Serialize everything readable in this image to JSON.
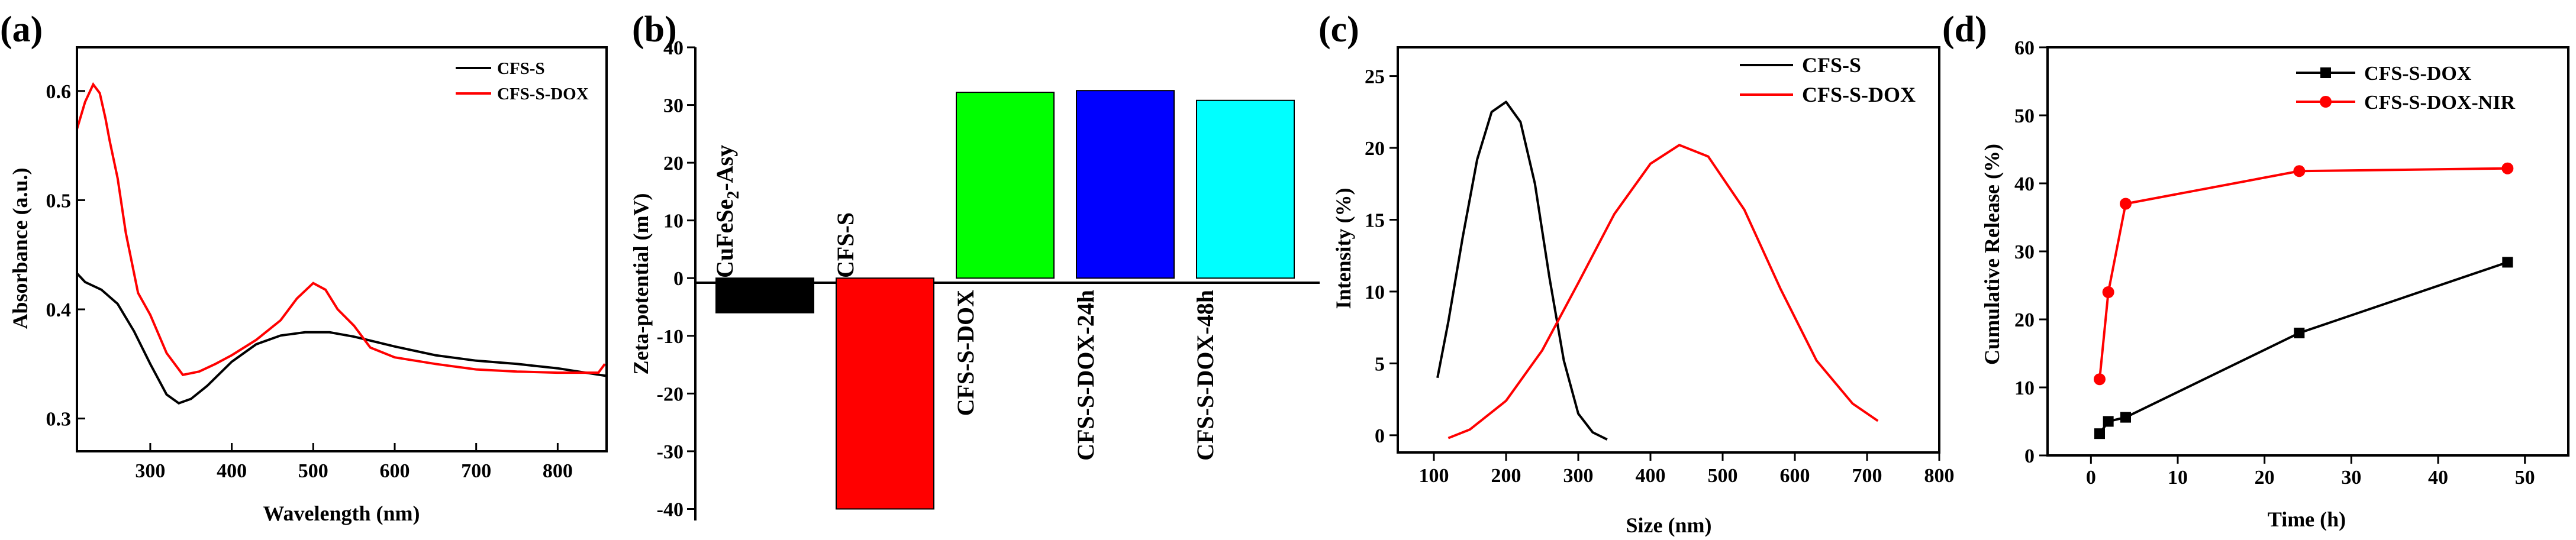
{
  "colors": {
    "black": "#000000",
    "red": "#ff0000",
    "green": "#00ff00",
    "blue": "#0000ff",
    "cyan": "#00ffff"
  },
  "chart_data": [
    {
      "type": "line",
      "panel_label": "(a)",
      "xlabel": "Wavelength (nm)",
      "ylabel": "Absorbance (a.u.)",
      "xlim": [
        210,
        860
      ],
      "ylim": [
        0.27,
        0.64
      ],
      "xticks": [
        "300",
        "400",
        "500",
        "600",
        "700",
        "800"
      ],
      "yticks": [
        "0.3",
        "0.4",
        "0.5",
        "0.6"
      ],
      "legend_position": "top-right",
      "series": [
        {
          "name": "CFS-S",
          "color": "#000000",
          "x": [
            210,
            220,
            240,
            260,
            280,
            300,
            320,
            335,
            350,
            370,
            400,
            430,
            460,
            490,
            520,
            550,
            600,
            650,
            700,
            750,
            800,
            860
          ],
          "y": [
            0.433,
            0.425,
            0.418,
            0.405,
            0.38,
            0.35,
            0.322,
            0.314,
            0.318,
            0.33,
            0.352,
            0.368,
            0.376,
            0.379,
            0.379,
            0.375,
            0.366,
            0.358,
            0.353,
            0.35,
            0.346,
            0.339
          ]
        },
        {
          "name": "CFS-S-DOX",
          "color": "#ff0000",
          "x": [
            210,
            220,
            230,
            238,
            245,
            250,
            260,
            270,
            285,
            300,
            320,
            340,
            360,
            380,
            400,
            430,
            460,
            480,
            500,
            515,
            530,
            550,
            570,
            600,
            650,
            700,
            750,
            800,
            850,
            858
          ],
          "y": [
            0.565,
            0.59,
            0.606,
            0.598,
            0.575,
            0.555,
            0.52,
            0.47,
            0.415,
            0.395,
            0.36,
            0.34,
            0.343,
            0.35,
            0.358,
            0.372,
            0.39,
            0.41,
            0.424,
            0.418,
            0.4,
            0.385,
            0.365,
            0.356,
            0.35,
            0.345,
            0.343,
            0.342,
            0.342,
            0.35
          ]
        }
      ]
    },
    {
      "type": "bar",
      "panel_label": "(b)",
      "xlabel": "",
      "ylabel": "Zeta-potential (mV)",
      "ylim": [
        -42,
        40
      ],
      "yticks": [
        "-40",
        "-30",
        "-20",
        "-10",
        "0",
        "10",
        "20",
        "30",
        "40"
      ],
      "categories": [
        "CuFeSe2-Asy",
        "CFS-S",
        "CFS-S-DOX",
        "CFS-S-DOX-24h",
        "CFS-S-DOX-48h"
      ],
      "category_label_main": "CuFeSe",
      "category_label_sub": "2",
      "category_label_rest": "-Asy",
      "values": [
        -6,
        -40,
        32.2,
        32.5,
        30.8
      ],
      "bar_colors": [
        "#000000",
        "#ff0000",
        "#00ff00",
        "#0000ff",
        "#00ffff"
      ]
    },
    {
      "type": "line",
      "panel_label": "(c)",
      "xlabel": "Size (nm)",
      "ylabel": "Intensity (%)",
      "xlim": [
        50,
        800
      ],
      "ylim": [
        -1.2,
        27
      ],
      "xticks": [
        "100",
        "200",
        "300",
        "400",
        "500",
        "600",
        "700",
        "800"
      ],
      "yticks": [
        "0",
        "5",
        "10",
        "15",
        "20",
        "25"
      ],
      "legend_position": "top-right",
      "series": [
        {
          "name": "CFS-S",
          "color": "#000000",
          "x": [
            105,
            120,
            140,
            160,
            180,
            200,
            220,
            240,
            260,
            280,
            300,
            320,
            340
          ],
          "y": [
            4.0,
            7.9,
            13.8,
            19.2,
            22.5,
            23.2,
            21.8,
            17.5,
            11.0,
            5.2,
            1.5,
            0.2,
            -0.3
          ]
        },
        {
          "name": "CFS-S-DOX",
          "color": "#ff0000",
          "x": [
            120,
            150,
            200,
            250,
            300,
            350,
            400,
            440,
            480,
            530,
            580,
            630,
            680,
            715
          ],
          "y": [
            -0.2,
            0.4,
            2.4,
            5.9,
            10.6,
            15.4,
            18.9,
            20.2,
            19.4,
            15.7,
            10.2,
            5.2,
            2.2,
            1.0
          ]
        }
      ]
    },
    {
      "type": "line",
      "panel_label": "(d)",
      "xlabel": "Time (h)",
      "ylabel": "Cumulative Release (%)",
      "xlim": [
        -5,
        55
      ],
      "ylim": [
        0,
        60
      ],
      "xticks": [
        "0",
        "10",
        "20",
        "30",
        "40",
        "50"
      ],
      "yticks": [
        "0",
        "10",
        "20",
        "30",
        "40",
        "50",
        "60"
      ],
      "legend_position": "top-left",
      "series": [
        {
          "name": "CFS-S-DOX",
          "color": "#000000",
          "marker": "square",
          "x": [
            1,
            2,
            4,
            24,
            48
          ],
          "y": [
            3.2,
            5.0,
            5.6,
            18.0,
            28.4
          ]
        },
        {
          "name": "CFS-S-DOX-NIR",
          "color": "#ff0000",
          "marker": "circle",
          "x": [
            1,
            2,
            4,
            24,
            48
          ],
          "y": [
            11.2,
            24.0,
            37.0,
            41.8,
            42.2
          ]
        }
      ]
    }
  ]
}
